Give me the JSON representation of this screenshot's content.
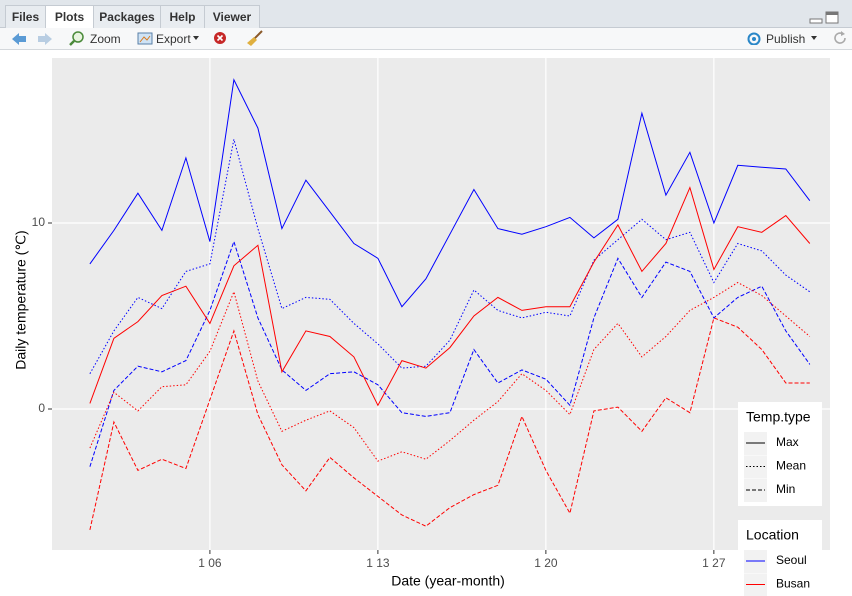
{
  "tabs": [
    "Files",
    "Plots",
    "Packages",
    "Help",
    "Viewer"
  ],
  "toolbar": {
    "zoom": "Zoom",
    "export": "Export",
    "publish": "Publish"
  },
  "chart_data": {
    "type": "line",
    "x_label": "Date (year-month)",
    "y_label": "Daily temperature (℃)",
    "x": [
      1,
      2,
      3,
      4,
      5,
      6,
      7,
      8,
      9,
      10,
      11,
      12,
      13,
      14,
      15,
      16,
      17,
      18,
      19,
      20,
      21,
      22,
      23,
      24,
      25,
      26,
      27,
      28,
      29,
      30,
      31
    ],
    "xlim": [
      -0.58,
      31.84
    ],
    "xticks": [
      {
        "value": 6,
        "label": "1 06"
      },
      {
        "value": 13,
        "label": "1 13"
      },
      {
        "value": 20,
        "label": "1 20"
      },
      {
        "value": 27,
        "label": "1 27"
      }
    ],
    "ylim": [
      -7.58,
      18.87
    ],
    "yticks": [
      0,
      10
    ],
    "grid": true,
    "legends": [
      {
        "title": "Temp.type",
        "entries": [
          {
            "label": "Max",
            "linetype": "solid"
          },
          {
            "label": "Mean",
            "linetype": "dotted"
          },
          {
            "label": "Min",
            "linetype": "dashed"
          }
        ]
      },
      {
        "title": "Location",
        "entries": [
          {
            "label": "Seoul",
            "color": "#0000ff"
          },
          {
            "label": "Busan",
            "color": "#ff0000"
          }
        ]
      }
    ],
    "series": [
      {
        "location": "Seoul",
        "temp_type": "Max",
        "values": [
          7.8,
          9.6,
          11.6,
          9.6,
          13.5,
          9.0,
          17.7,
          15.1,
          9.7,
          12.3,
          10.6,
          8.9,
          8.1,
          5.5,
          7.0,
          9.4,
          11.8,
          9.7,
          9.4,
          9.8,
          10.3,
          9.2,
          10.2,
          15.9,
          11.5,
          13.8,
          10.0,
          13.1,
          13.0,
          12.9,
          11.2
        ]
      },
      {
        "location": "Seoul",
        "temp_type": "Mean",
        "values": [
          1.9,
          4.2,
          6.0,
          5.4,
          7.4,
          7.8,
          14.5,
          9.7,
          5.4,
          6.0,
          5.9,
          4.6,
          3.5,
          2.2,
          2.3,
          3.7,
          6.4,
          5.3,
          4.9,
          5.2,
          5.0,
          8.0,
          9.1,
          10.2,
          9.1,
          9.5,
          6.8,
          8.9,
          8.5,
          7.2,
          6.3
        ]
      },
      {
        "location": "Seoul",
        "temp_type": "Min",
        "values": [
          -3.1,
          1.0,
          2.3,
          2.0,
          2.6,
          5.3,
          9.0,
          4.9,
          2.1,
          1.0,
          1.9,
          2.0,
          1.3,
          -0.2,
          -0.4,
          -0.2,
          3.2,
          1.4,
          2.1,
          1.6,
          0.2,
          4.9,
          8.1,
          6.0,
          7.9,
          7.4,
          4.9,
          6.0,
          6.6,
          4.2,
          2.4
        ]
      },
      {
        "location": "Busan",
        "temp_type": "Max",
        "values": [
          0.3,
          3.8,
          4.7,
          6.1,
          6.6,
          4.6,
          7.7,
          8.8,
          2.0,
          4.2,
          3.9,
          2.8,
          0.2,
          2.6,
          2.2,
          3.3,
          5.0,
          6.0,
          5.3,
          5.5,
          5.5,
          7.9,
          9.9,
          7.4,
          8.9,
          11.9,
          7.5,
          9.8,
          9.5,
          10.4,
          8.9
        ]
      },
      {
        "location": "Busan",
        "temp_type": "Mean",
        "values": [
          -2.1,
          0.9,
          -0.1,
          1.2,
          1.3,
          3.1,
          6.3,
          1.5,
          -1.2,
          -0.6,
          -0.1,
          -1.0,
          -2.8,
          -2.3,
          -2.7,
          -1.7,
          -0.6,
          0.4,
          1.9,
          1.0,
          -0.3,
          3.2,
          4.6,
          2.8,
          3.9,
          5.3,
          6.0,
          6.8,
          6.1,
          5.0,
          3.9
        ]
      },
      {
        "location": "Busan",
        "temp_type": "Min",
        "values": [
          -6.5,
          -0.7,
          -3.3,
          -2.7,
          -3.2,
          0.5,
          4.2,
          -0.3,
          -3.0,
          -4.4,
          -2.6,
          -3.7,
          -4.7,
          -5.7,
          -6.3,
          -5.3,
          -4.6,
          -4.1,
          -0.4,
          -3.3,
          -5.6,
          -0.1,
          0.1,
          -1.2,
          0.6,
          -0.2,
          4.9,
          4.4,
          3.2,
          1.4,
          1.4
        ]
      }
    ]
  }
}
